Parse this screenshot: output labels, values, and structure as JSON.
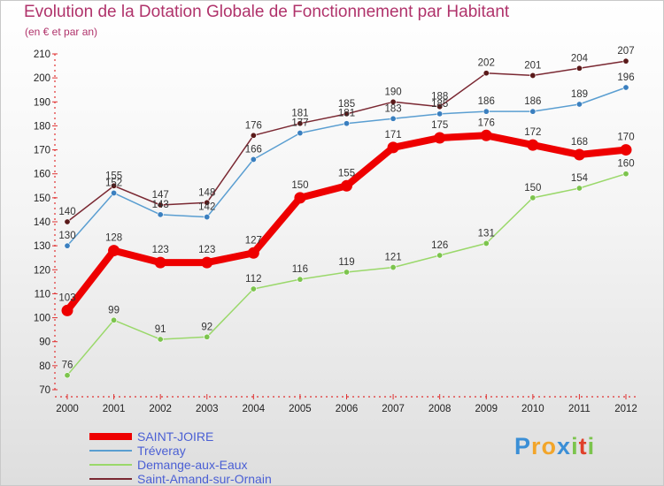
{
  "header": {
    "title": "Evolution de la Dotation Globale de Fonctionnement par Habitant",
    "subtitle": "(en € et par an)"
  },
  "chart_data": {
    "type": "line",
    "title": "Evolution de la Dotation Globale de Fonctionnement par Habitant",
    "subtitle": "(en € et par an)",
    "xlabel": "",
    "ylabel": "",
    "x": [
      "2000",
      "2001",
      "2002",
      "2003",
      "2004",
      "2005",
      "2006",
      "2007",
      "2008",
      "2009",
      "2010",
      "2011",
      "2012"
    ],
    "ylim": [
      70,
      210
    ],
    "yticks": [
      70,
      80,
      90,
      100,
      110,
      120,
      130,
      140,
      150,
      160,
      170,
      180,
      190,
      200,
      210
    ],
    "grid": false,
    "legend": "bottom-left",
    "series": [
      {
        "name": "Saint-Amand-sur-Ornain",
        "color": "#7a2832",
        "marker": "#5a1a1a",
        "width": 1.5,
        "r": 3.2,
        "values": [
          140,
          155,
          147,
          148,
          176,
          181,
          185,
          190,
          188,
          202,
          201,
          204,
          207
        ]
      },
      {
        "name": "Tréveray",
        "color": "#5a9ed1",
        "marker": "#3a7fbf",
        "width": 1.5,
        "r": 3.2,
        "values": [
          130,
          152,
          143,
          142,
          166,
          177,
          181,
          183,
          185,
          186,
          186,
          189,
          196
        ]
      },
      {
        "name": "Demange-aux-Eaux",
        "color": "#9ad86a",
        "marker": "#7cc44d",
        "width": 1.5,
        "r": 3.2,
        "values": [
          76,
          99,
          91,
          92,
          112,
          116,
          119,
          121,
          126,
          131,
          150,
          154,
          160
        ]
      },
      {
        "name": "SAINT-JOIRE",
        "color": "#ee0000",
        "marker": "#ee0000",
        "width": 8,
        "r": 6.5,
        "values": [
          103,
          128,
          123,
          123,
          127,
          150,
          155,
          171,
          175,
          176,
          172,
          168,
          170
        ]
      }
    ]
  },
  "legend": {
    "items": [
      {
        "label": "SAINT-JOIRE",
        "color": "#ee0000",
        "thickness": 8
      },
      {
        "label": "Tréveray",
        "color": "#5a9ed1",
        "thickness": 2
      },
      {
        "label": "Demange-aux-Eaux",
        "color": "#9ad86a",
        "thickness": 2
      },
      {
        "label": "Saint-Amand-sur-Ornain",
        "color": "#7a2832",
        "thickness": 2
      }
    ]
  },
  "logo": {
    "letters": [
      "P",
      "r",
      "o",
      "x",
      "i",
      "t",
      "i"
    ],
    "colors": [
      "#3b8fd6",
      "#f2a52a",
      "#f2a52a",
      "#3b8fd6",
      "#7cc44d",
      "#e0402a",
      "#7cc44d"
    ]
  }
}
